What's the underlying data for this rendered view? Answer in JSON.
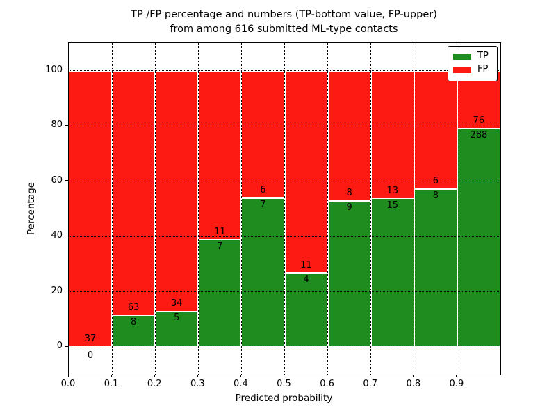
{
  "chart_data": {
    "type": "bar",
    "stacked": true,
    "normalized_to_percent": true,
    "title": "TP /FP percentage and numbers (TP-bottom value, FP-upper)\nfrom among 616 submitted ML-type contacts",
    "title_lines": [
      "TP /FP percentage and numbers (TP-bottom value, FP-upper)",
      "from among 616 submitted ML-type contacts"
    ],
    "xlabel": "Predicted probability",
    "ylabel": "Percentage",
    "xlim": [
      0.0,
      1.0
    ],
    "ylim": [
      -10,
      110
    ],
    "grid": true,
    "grid_style": "dotted",
    "bin_width": 0.1,
    "bin_starts": [
      0.0,
      0.1,
      0.2,
      0.3,
      0.4,
      0.5,
      0.6,
      0.7,
      0.8,
      0.9
    ],
    "xtick_labels": [
      "0.0",
      "0.1",
      "0.2",
      "0.3",
      "0.4",
      "0.5",
      "0.6",
      "0.7",
      "0.8",
      "0.9"
    ],
    "ytick_values": [
      0,
      20,
      40,
      60,
      80,
      100
    ],
    "ytick_labels": [
      "0",
      "20",
      "40",
      "60",
      "80",
      "100"
    ],
    "series": [
      {
        "name": "TP",
        "color": "#1e8c1e",
        "counts": [
          0,
          8,
          5,
          7,
          7,
          4,
          9,
          15,
          8,
          288
        ]
      },
      {
        "name": "FP",
        "color": "#fc1a13",
        "counts": [
          37,
          63,
          34,
          11,
          6,
          11,
          8,
          13,
          6,
          76
        ]
      }
    ],
    "tp_percent_of_bin": [
      0.0,
      11.27,
      12.82,
      38.89,
      53.85,
      26.67,
      52.94,
      53.57,
      57.14,
      79.12
    ],
    "legend": {
      "position": "upper right",
      "entries": [
        {
          "label": "TP",
          "color": "#1e8c1e"
        },
        {
          "label": "FP",
          "color": "#fc1a13"
        }
      ]
    }
  }
}
